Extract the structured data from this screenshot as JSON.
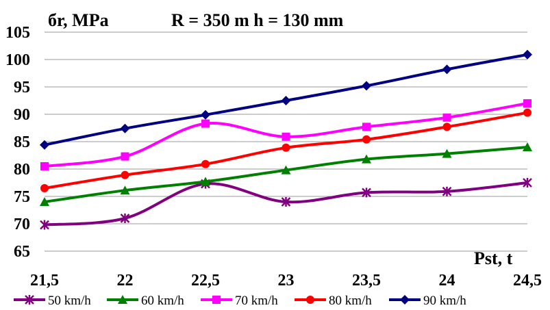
{
  "chart_data": {
    "type": "line",
    "title": "R = 350 m  h = 130 mm",
    "ylabel": "бr, MPa",
    "xlabel": "Pst, t",
    "x": [
      21.5,
      22,
      22.5,
      23,
      23.5,
      24,
      24.5
    ],
    "x_tick_labels": [
      "21,5",
      "22",
      "22,5",
      "23",
      "23,5",
      "24",
      "24,5"
    ],
    "ylim": [
      65,
      105
    ],
    "y_ticks": [
      65,
      70,
      75,
      80,
      85,
      90,
      95,
      100,
      105
    ],
    "grid": "horizontal",
    "legend_position": "bottom",
    "series": [
      {
        "name": "50 km/h",
        "color": "#800080",
        "marker": "asterisk",
        "values": [
          69.8,
          71.0,
          77.3,
          74.0,
          75.7,
          75.9,
          77.5
        ]
      },
      {
        "name": "60 km/h",
        "color": "#008000",
        "marker": "triangle",
        "values": [
          74.0,
          76.1,
          77.7,
          79.8,
          81.8,
          82.8,
          84.0
        ]
      },
      {
        "name": "70 km/h",
        "color": "#ff00ff",
        "marker": "square",
        "values": [
          80.5,
          82.3,
          88.3,
          85.9,
          87.7,
          89.4,
          92.0
        ]
      },
      {
        "name": "80 km/h",
        "color": "#ff0000",
        "marker": "circle",
        "values": [
          76.5,
          78.9,
          80.9,
          83.9,
          85.4,
          87.7,
          90.3
        ]
      },
      {
        "name": "90 km/h",
        "color": "#000080",
        "marker": "diamond",
        "values": [
          84.4,
          87.4,
          89.9,
          92.5,
          95.2,
          98.2,
          100.9
        ]
      }
    ]
  }
}
